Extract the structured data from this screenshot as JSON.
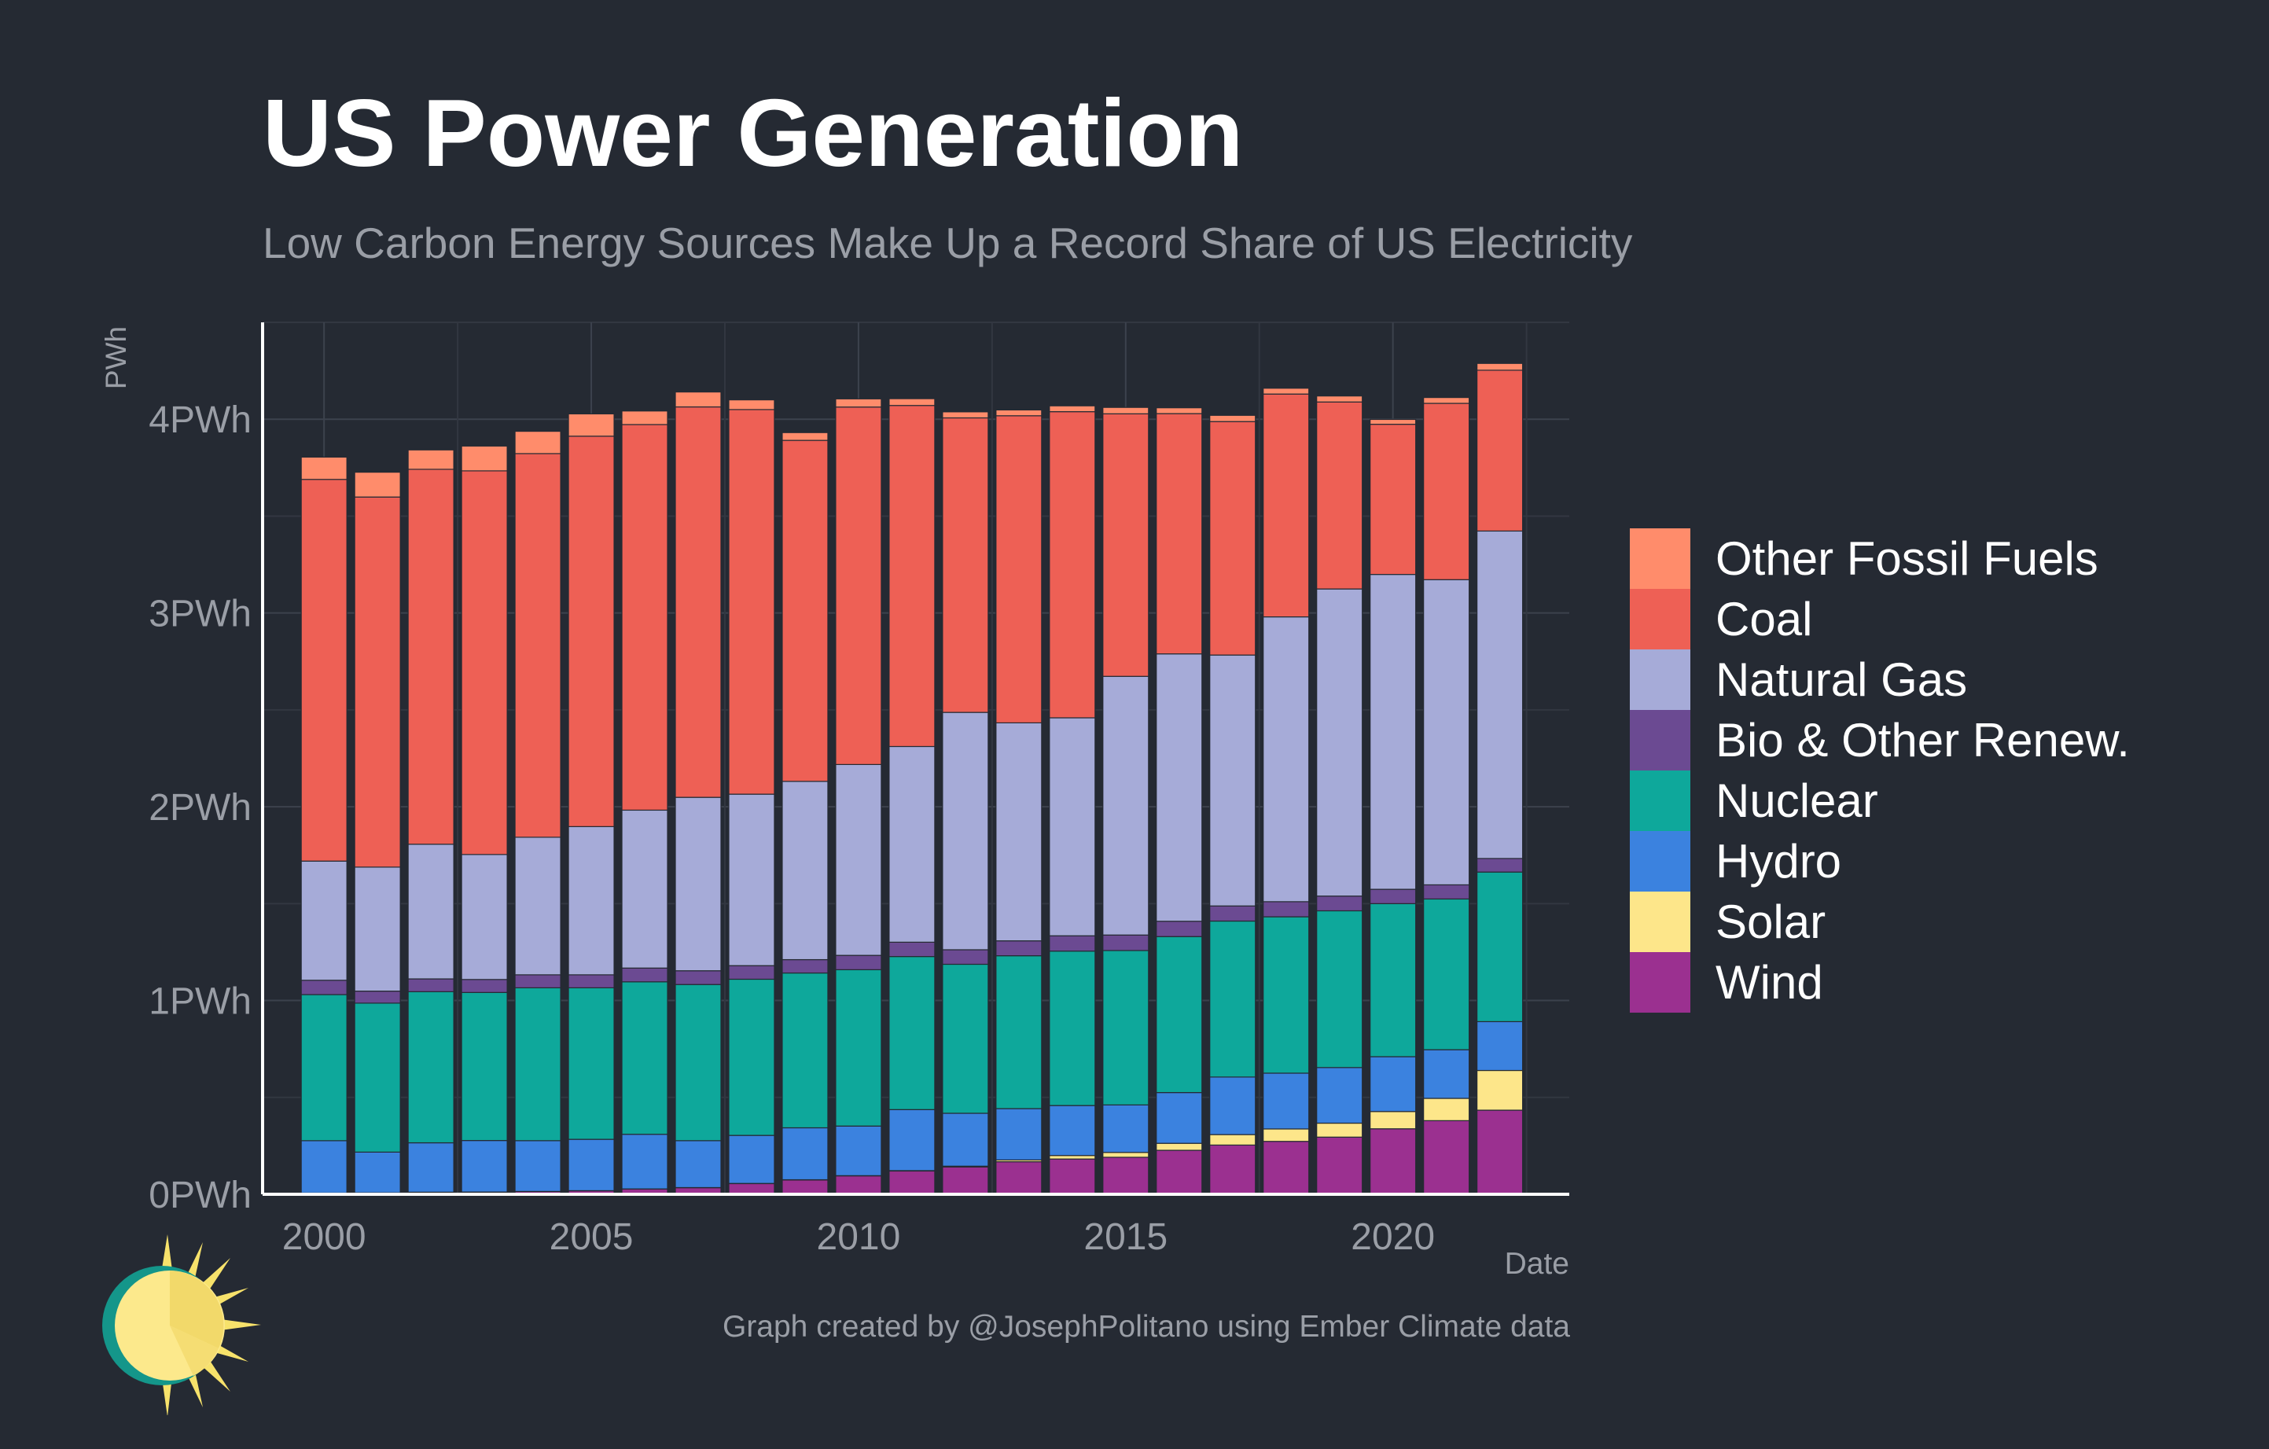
{
  "header": {
    "title": "US Power Generation",
    "subtitle": "Low Carbon Energy Sources Make Up a Record Share of US Electricity"
  },
  "footer": {
    "credit": "Graph created by @JosephPolitano using Ember Climate data"
  },
  "logo": {
    "icon": "sun-logo-icon"
  },
  "chart_data": {
    "type": "bar",
    "stacked": true,
    "title": "US Power Generation",
    "subtitle": "Low Carbon Energy Sources Make Up a Record Share of US Electricity",
    "xlabel": "Date",
    "ylabel": "PWh",
    "unit": "PWh",
    "ylim": [
      0,
      4.5
    ],
    "y_ticks": [
      {
        "value": 0,
        "label": "0PWh"
      },
      {
        "value": 1,
        "label": "1PWh"
      },
      {
        "value": 2,
        "label": "2PWh"
      },
      {
        "value": 3,
        "label": "3PWh"
      },
      {
        "value": 4,
        "label": "4PWh"
      }
    ],
    "x_ticks": [
      {
        "value": 2000,
        "label": "2000"
      },
      {
        "value": 2005,
        "label": "2005"
      },
      {
        "value": 2010,
        "label": "2010"
      },
      {
        "value": 2015,
        "label": "2015"
      },
      {
        "value": 2020,
        "label": "2020"
      }
    ],
    "grid": true,
    "legend_position": "right",
    "background": "#252a33",
    "years": [
      2000,
      2001,
      2002,
      2003,
      2004,
      2005,
      2006,
      2007,
      2008,
      2009,
      2010,
      2011,
      2012,
      2013,
      2014,
      2015,
      2016,
      2017,
      2018,
      2019,
      2020,
      2021,
      2022
    ],
    "series": [
      {
        "name": "Wind",
        "color": "#9b3090",
        "values": [
          0.006,
          0.007,
          0.01,
          0.011,
          0.014,
          0.018,
          0.027,
          0.034,
          0.055,
          0.074,
          0.095,
          0.12,
          0.141,
          0.168,
          0.182,
          0.191,
          0.227,
          0.254,
          0.273,
          0.295,
          0.338,
          0.38,
          0.434
        ]
      },
      {
        "name": "Solar",
        "color": "#fde68a",
        "values": [
          0.0005,
          0.0005,
          0.0006,
          0.0005,
          0.0006,
          0.0006,
          0.0005,
          0.0006,
          0.0009,
          0.001,
          0.001,
          0.002,
          0.004,
          0.009,
          0.018,
          0.025,
          0.036,
          0.054,
          0.064,
          0.072,
          0.089,
          0.115,
          0.205
        ]
      },
      {
        "name": "Hydro",
        "color": "#3b82df",
        "values": [
          0.27,
          0.21,
          0.255,
          0.266,
          0.262,
          0.265,
          0.282,
          0.242,
          0.248,
          0.268,
          0.256,
          0.315,
          0.273,
          0.265,
          0.258,
          0.245,
          0.262,
          0.297,
          0.288,
          0.287,
          0.283,
          0.251,
          0.252
        ]
      },
      {
        "name": "Nuclear",
        "color": "#0ea89b",
        "values": [
          0.754,
          0.769,
          0.78,
          0.764,
          0.789,
          0.782,
          0.787,
          0.806,
          0.806,
          0.799,
          0.807,
          0.79,
          0.769,
          0.789,
          0.797,
          0.797,
          0.805,
          0.805,
          0.807,
          0.809,
          0.79,
          0.778,
          0.772
        ]
      },
      {
        "name": "Bio & Other Renew.",
        "color": "#6b4a92",
        "values": [
          0.074,
          0.062,
          0.066,
          0.067,
          0.067,
          0.067,
          0.071,
          0.071,
          0.07,
          0.069,
          0.074,
          0.074,
          0.075,
          0.077,
          0.079,
          0.08,
          0.079,
          0.078,
          0.078,
          0.076,
          0.074,
          0.073,
          0.07
        ]
      },
      {
        "name": "Natural Gas",
        "color": "#a6abd8",
        "values": [
          0.615,
          0.64,
          0.695,
          0.645,
          0.71,
          0.765,
          0.815,
          0.895,
          0.885,
          0.92,
          0.985,
          1.01,
          1.225,
          1.125,
          1.125,
          1.335,
          1.38,
          1.295,
          1.47,
          1.585,
          1.625,
          1.575,
          1.69
        ]
      },
      {
        "name": "Coal",
        "color": "#ee6055",
        "values": [
          1.97,
          1.91,
          1.935,
          1.98,
          1.98,
          2.015,
          1.99,
          2.015,
          1.985,
          1.76,
          1.845,
          1.76,
          1.52,
          1.585,
          1.58,
          1.355,
          1.24,
          1.205,
          1.15,
          0.965,
          0.775,
          0.91,
          0.83
        ]
      },
      {
        "name": "Other Fossil Fuels",
        "color": "#ff8c6b",
        "values": [
          0.115,
          0.128,
          0.1,
          0.128,
          0.115,
          0.115,
          0.07,
          0.077,
          0.05,
          0.04,
          0.042,
          0.035,
          0.031,
          0.03,
          0.03,
          0.033,
          0.03,
          0.032,
          0.03,
          0.031,
          0.025,
          0.03,
          0.035
        ]
      }
    ]
  }
}
